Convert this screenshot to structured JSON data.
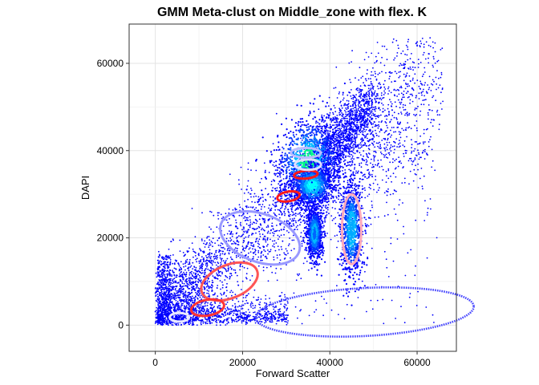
{
  "chart_data": {
    "type": "scatter",
    "title": "GMM Meta-clust on Middle_zone with flex. K",
    "xlabel": "Forward Scatter",
    "ylabel": "DAPI",
    "xlim": [
      -6000,
      69000
    ],
    "ylim": [
      -6000,
      69000
    ],
    "x_ticks": [
      0,
      20000,
      40000,
      60000
    ],
    "x_tick_labels": [
      "0",
      "20000",
      "40000",
      "60000"
    ],
    "y_ticks": [
      0,
      20000,
      40000,
      60000
    ],
    "y_tick_labels": [
      "0",
      "20000",
      "40000",
      "60000"
    ],
    "grid": true,
    "point_color": "#0000ff",
    "dense_clusters": [
      {
        "x": 35000,
        "y": 38000,
        "sx": 4000,
        "sy": 5000,
        "rho": 0.3,
        "peak": "#00ff88"
      },
      {
        "x": 36000,
        "y": 32000,
        "sx": 2500,
        "sy": 2500,
        "rho": 0.2,
        "peak": "#00ffff"
      },
      {
        "x": 45000,
        "y": 22000,
        "sx": 1200,
        "sy": 5500,
        "rho": 0.0,
        "peak": "#00aaff"
      },
      {
        "x": 36500,
        "y": 21000,
        "sx": 900,
        "sy": 3000,
        "rho": 0.0,
        "peak": "#0066ff"
      }
    ],
    "ellipses": [
      {
        "cx": 48000,
        "cy": 3000,
        "rx": 25000,
        "ry": 5500,
        "angle": 3,
        "color": "#4444ff",
        "dotted": true
      },
      {
        "cx": 24000,
        "cy": 20000,
        "rx": 9500,
        "ry": 5500,
        "angle": -20,
        "color": "#9999ff",
        "dotted": false
      },
      {
        "cx": 45000,
        "cy": 22000,
        "rx": 2200,
        "ry": 8000,
        "angle": 0,
        "color": "#ffaabb",
        "dotted": false
      },
      {
        "cx": 17000,
        "cy": 10000,
        "rx": 6800,
        "ry": 3800,
        "angle": 22,
        "color": "#ff5555",
        "dotted": false
      },
      {
        "cx": 12000,
        "cy": 4000,
        "rx": 3800,
        "ry": 1800,
        "angle": 10,
        "color": "#ff3333",
        "dotted": false
      },
      {
        "cx": 5500,
        "cy": 1800,
        "rx": 2200,
        "ry": 1000,
        "angle": 0,
        "color": "#e8e8ff",
        "dotted": false
      },
      {
        "cx": 30500,
        "cy": 29500,
        "rx": 2600,
        "ry": 1100,
        "angle": 10,
        "color": "#ff1a1a",
        "dotted": false
      },
      {
        "cx": 34500,
        "cy": 34500,
        "rx": 2700,
        "ry": 900,
        "angle": 5,
        "color": "#ff1a1a",
        "dotted": false
      },
      {
        "cx": 35000,
        "cy": 36800,
        "rx": 3000,
        "ry": 1200,
        "angle": 0,
        "color": "#ddddff",
        "dotted": false
      },
      {
        "cx": 34500,
        "cy": 39500,
        "rx": 3400,
        "ry": 1100,
        "angle": 0,
        "color": "#bbbbff",
        "dotted": false
      }
    ]
  }
}
